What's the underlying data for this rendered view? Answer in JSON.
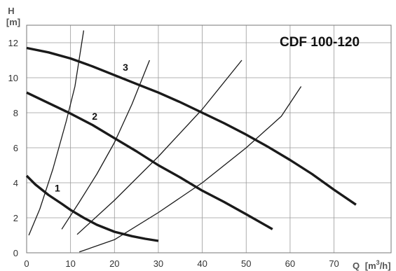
{
  "chart_data": {
    "type": "line",
    "title": "CDF 100-120",
    "ylabel_top": "H",
    "ylabel_unit": "[m]",
    "xlabel_main": "Q",
    "xlabel_unit_pre": "[m",
    "xlabel_unit_sup": "3",
    "xlabel_unit_post": "/h]",
    "xlim": [
      0,
      83
    ],
    "ylim": [
      0,
      13
    ],
    "x_ticks": [
      0,
      10,
      20,
      30,
      40,
      50,
      60,
      70
    ],
    "y_ticks": [
      0,
      2,
      4,
      6,
      8,
      10,
      12
    ],
    "grid": true,
    "series": [
      {
        "name": "1",
        "kind": "pump",
        "label_at": [
          7,
          3.5
        ],
        "x": [
          0,
          2,
          5,
          8,
          10,
          13,
          16,
          20,
          24,
          27,
          30
        ],
        "y": [
          4.4,
          3.9,
          3.3,
          2.8,
          2.45,
          2.0,
          1.6,
          1.2,
          0.95,
          0.8,
          0.68
        ]
      },
      {
        "name": "2",
        "kind": "pump",
        "label_at": [
          15.5,
          7.6
        ],
        "x": [
          0,
          5,
          10,
          15,
          20,
          25,
          30,
          35,
          40,
          45,
          50,
          56
        ],
        "y": [
          9.15,
          8.55,
          7.95,
          7.3,
          6.55,
          5.8,
          5.0,
          4.3,
          3.55,
          2.9,
          2.2,
          1.35
        ]
      },
      {
        "name": "3",
        "kind": "pump",
        "label_at": [
          22.5,
          10.4
        ],
        "x": [
          0,
          5,
          10,
          15,
          20,
          25,
          30,
          35,
          40,
          45,
          50,
          55,
          60,
          65,
          70,
          75
        ],
        "y": [
          11.7,
          11.45,
          11.1,
          10.65,
          10.15,
          9.65,
          9.15,
          8.6,
          8.0,
          7.4,
          6.75,
          6.05,
          5.3,
          4.5,
          3.6,
          2.75
        ]
      },
      {
        "kind": "system",
        "x": [
          0.5,
          3,
          6,
          9,
          11,
          13
        ],
        "y": [
          1.0,
          2.5,
          4.8,
          7.5,
          9.5,
          12.7
        ]
      },
      {
        "kind": "system",
        "x": [
          8,
          12,
          16,
          20,
          24,
          28
        ],
        "y": [
          1.35,
          2.9,
          4.5,
          6.3,
          8.5,
          11.0
        ]
      },
      {
        "kind": "system",
        "x": [
          11.5,
          20,
          30,
          40,
          49
        ],
        "y": [
          1.05,
          3.0,
          5.5,
          8.2,
          11.0
        ]
      },
      {
        "kind": "system",
        "x": [
          12,
          20,
          30,
          40,
          50,
          58,
          62.5
        ],
        "y": [
          0.05,
          0.75,
          2.3,
          4.0,
          6.0,
          7.8,
          9.5
        ]
      }
    ]
  }
}
